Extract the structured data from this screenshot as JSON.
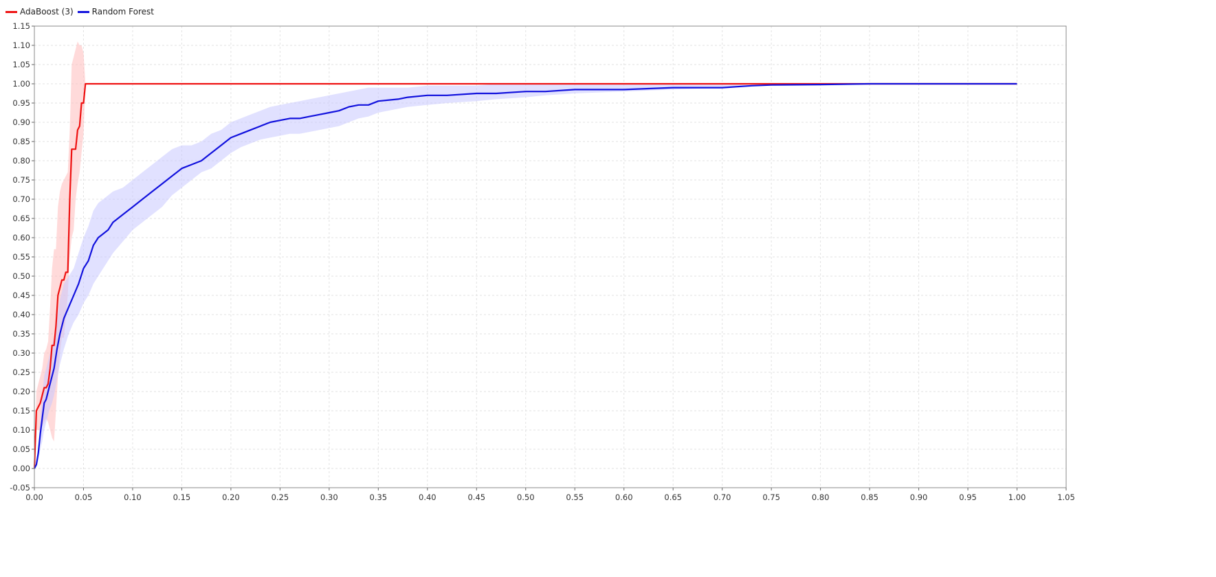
{
  "chart_data": {
    "type": "line",
    "title": "",
    "xlabel": "",
    "ylabel": "",
    "xlim": [
      0,
      1.05
    ],
    "ylim": [
      -0.05,
      1.15
    ],
    "grid": true,
    "legend_position": "top-left",
    "x_ticks": [
      "0.00",
      "0.05",
      "0.10",
      "0.15",
      "0.20",
      "0.25",
      "0.30",
      "0.35",
      "0.40",
      "0.45",
      "0.50",
      "0.55",
      "0.60",
      "0.65",
      "0.70",
      "0.75",
      "0.80",
      "0.85",
      "0.90",
      "0.95",
      "1.00",
      "1.05"
    ],
    "y_ticks": [
      "-0.05",
      "0.00",
      "0.05",
      "0.10",
      "0.15",
      "0.20",
      "0.25",
      "0.30",
      "0.35",
      "0.40",
      "0.45",
      "0.50",
      "0.55",
      "0.60",
      "0.65",
      "0.70",
      "0.75",
      "0.80",
      "0.85",
      "0.90",
      "0.95",
      "1.00",
      "1.05",
      "1.10",
      "1.15"
    ],
    "series": [
      {
        "name": "AdaBoost (3)",
        "color": "#ee1111",
        "band_color": "#ffbbbb",
        "x": [
          0.0,
          0.002,
          0.004,
          0.006,
          0.008,
          0.01,
          0.012,
          0.014,
          0.016,
          0.018,
          0.02,
          0.022,
          0.024,
          0.026,
          0.028,
          0.03,
          0.032,
          0.034,
          0.036,
          0.038,
          0.04,
          0.042,
          0.044,
          0.046,
          0.048,
          0.05,
          0.052,
          0.054,
          0.06,
          0.1,
          0.2,
          0.4,
          0.6,
          0.8,
          1.0
        ],
        "y": [
          0.0,
          0.15,
          0.16,
          0.17,
          0.19,
          0.21,
          0.21,
          0.22,
          0.26,
          0.32,
          0.32,
          0.37,
          0.45,
          0.47,
          0.49,
          0.49,
          0.51,
          0.51,
          0.7,
          0.83,
          0.83,
          0.83,
          0.88,
          0.89,
          0.95,
          0.95,
          1.0,
          1.0,
          1.0,
          1.0,
          1.0,
          1.0,
          1.0,
          1.0,
          1.0
        ],
        "lower": [
          0.0,
          0.1,
          0.1,
          0.1,
          0.11,
          0.12,
          0.13,
          0.12,
          0.1,
          0.08,
          0.07,
          0.15,
          0.24,
          0.3,
          0.34,
          0.34,
          0.39,
          0.45,
          0.55,
          0.6,
          0.62,
          0.7,
          0.74,
          0.77,
          0.82,
          0.87,
          1.0,
          1.0,
          1.0,
          1.0,
          1.0,
          1.0,
          1.0,
          1.0,
          1.0
        ],
        "upper": [
          0.0,
          0.2,
          0.22,
          0.24,
          0.26,
          0.3,
          0.31,
          0.33,
          0.42,
          0.52,
          0.57,
          0.57,
          0.68,
          0.72,
          0.74,
          0.75,
          0.76,
          0.77,
          0.88,
          1.05,
          1.07,
          1.09,
          1.11,
          1.1,
          1.1,
          1.08,
          1.0,
          1.0,
          1.0,
          1.0,
          1.0,
          1.0,
          1.0,
          1.0,
          1.0
        ]
      },
      {
        "name": "Random Forest",
        "color": "#1111dd",
        "band_color": "#c8c8ff",
        "x": [
          0.0,
          0.002,
          0.004,
          0.006,
          0.008,
          0.01,
          0.012,
          0.015,
          0.018,
          0.02,
          0.023,
          0.026,
          0.03,
          0.035,
          0.04,
          0.045,
          0.05,
          0.055,
          0.06,
          0.065,
          0.07,
          0.075,
          0.08,
          0.09,
          0.1,
          0.11,
          0.12,
          0.13,
          0.14,
          0.15,
          0.16,
          0.17,
          0.18,
          0.19,
          0.2,
          0.21,
          0.22,
          0.23,
          0.24,
          0.25,
          0.26,
          0.27,
          0.28,
          0.29,
          0.3,
          0.31,
          0.32,
          0.33,
          0.34,
          0.35,
          0.37,
          0.38,
          0.4,
          0.42,
          0.45,
          0.47,
          0.5,
          0.52,
          0.55,
          0.6,
          0.65,
          0.7,
          0.73,
          0.75,
          0.8,
          0.85,
          0.9,
          1.0
        ],
        "y": [
          0.0,
          0.01,
          0.04,
          0.09,
          0.13,
          0.17,
          0.18,
          0.21,
          0.24,
          0.26,
          0.31,
          0.35,
          0.39,
          0.42,
          0.45,
          0.48,
          0.52,
          0.54,
          0.58,
          0.6,
          0.61,
          0.62,
          0.64,
          0.66,
          0.68,
          0.7,
          0.72,
          0.74,
          0.76,
          0.78,
          0.79,
          0.8,
          0.82,
          0.84,
          0.86,
          0.87,
          0.88,
          0.89,
          0.9,
          0.905,
          0.91,
          0.91,
          0.915,
          0.92,
          0.925,
          0.93,
          0.94,
          0.945,
          0.945,
          0.955,
          0.96,
          0.965,
          0.97,
          0.97,
          0.975,
          0.975,
          0.98,
          0.98,
          0.985,
          0.985,
          0.99,
          0.99,
          0.995,
          0.997,
          0.998,
          1.0,
          1.0,
          1.0
        ],
        "lower": [
          0.0,
          0.005,
          0.02,
          0.05,
          0.07,
          0.1,
          0.12,
          0.15,
          0.17,
          0.19,
          0.23,
          0.27,
          0.31,
          0.35,
          0.38,
          0.4,
          0.43,
          0.45,
          0.48,
          0.5,
          0.52,
          0.54,
          0.56,
          0.59,
          0.62,
          0.64,
          0.66,
          0.68,
          0.71,
          0.73,
          0.75,
          0.77,
          0.78,
          0.8,
          0.82,
          0.835,
          0.845,
          0.855,
          0.86,
          0.865,
          0.87,
          0.87,
          0.875,
          0.88,
          0.885,
          0.89,
          0.9,
          0.91,
          0.915,
          0.925,
          0.935,
          0.94,
          0.945,
          0.95,
          0.955,
          0.96,
          0.965,
          0.97,
          0.975,
          0.98,
          0.985,
          0.99,
          0.995,
          0.997,
          0.998,
          1.0,
          1.0,
          1.0
        ],
        "upper": [
          0.0,
          0.015,
          0.06,
          0.13,
          0.19,
          0.24,
          0.26,
          0.29,
          0.32,
          0.34,
          0.39,
          0.44,
          0.48,
          0.5,
          0.52,
          0.56,
          0.6,
          0.63,
          0.67,
          0.69,
          0.7,
          0.71,
          0.72,
          0.73,
          0.75,
          0.77,
          0.79,
          0.81,
          0.83,
          0.84,
          0.84,
          0.85,
          0.87,
          0.88,
          0.9,
          0.91,
          0.92,
          0.93,
          0.94,
          0.945,
          0.95,
          0.955,
          0.96,
          0.965,
          0.97,
          0.975,
          0.98,
          0.985,
          0.99,
          0.99,
          0.99,
          0.99,
          0.995,
          0.995,
          0.995,
          1.0,
          1.0,
          1.0,
          1.0,
          1.0,
          1.0,
          1.0,
          1.0,
          1.0,
          1.0,
          1.0,
          1.0,
          1.0
        ]
      }
    ]
  }
}
